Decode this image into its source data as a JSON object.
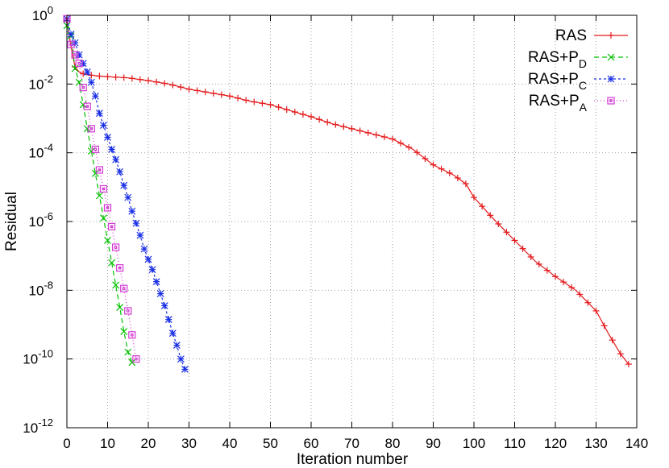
{
  "chart_data": {
    "type": "line",
    "title": "",
    "xlabel": "Iteration number",
    "ylabel": "Residual",
    "xlim": [
      0,
      140
    ],
    "ylim_log10": [
      -12,
      0
    ],
    "yscale": "log",
    "grid": true,
    "legend_position": "top-right",
    "x_ticks": [
      "0",
      "10",
      "20",
      "30",
      "40",
      "50",
      "60",
      "70",
      "80",
      "90",
      "100",
      "110",
      "120",
      "130",
      "140"
    ],
    "y_ticks": [
      {
        "base": "10",
        "exp": "0",
        "log10": 0
      },
      {
        "base": "10",
        "exp": "-2",
        "log10": -2
      },
      {
        "base": "10",
        "exp": "-4",
        "log10": -4
      },
      {
        "base": "10",
        "exp": "-6",
        "log10": -6
      },
      {
        "base": "10",
        "exp": "-8",
        "log10": -8
      },
      {
        "base": "10",
        "exp": "-10",
        "log10": -10
      },
      {
        "base": "10",
        "exp": "-12",
        "log10": -12
      }
    ],
    "series": [
      {
        "name": "RAS",
        "name_base": "RAS+P",
        "name_sub": "",
        "legend_label": "RAS",
        "color": "#e41a1c",
        "dash": "",
        "marker": "plus",
        "points_log10": [
          [
            0,
            -0.15
          ],
          [
            1,
            -0.9
          ],
          [
            2,
            -1.5
          ],
          [
            3,
            -1.65
          ],
          [
            4,
            -1.7
          ],
          [
            5,
            -1.73
          ],
          [
            8,
            -1.77
          ],
          [
            12,
            -1.8
          ],
          [
            15,
            -1.82
          ],
          [
            20,
            -1.9
          ],
          [
            25,
            -2.0
          ],
          [
            30,
            -2.15
          ],
          [
            35,
            -2.25
          ],
          [
            40,
            -2.35
          ],
          [
            45,
            -2.5
          ],
          [
            50,
            -2.6
          ],
          [
            55,
            -2.78
          ],
          [
            60,
            -2.95
          ],
          [
            65,
            -3.15
          ],
          [
            70,
            -3.3
          ],
          [
            75,
            -3.45
          ],
          [
            80,
            -3.6
          ],
          [
            85,
            -3.9
          ],
          [
            90,
            -4.35
          ],
          [
            95,
            -4.65
          ],
          [
            98,
            -4.9
          ],
          [
            100,
            -5.3
          ],
          [
            105,
            -5.95
          ],
          [
            110,
            -6.55
          ],
          [
            115,
            -7.15
          ],
          [
            120,
            -7.6
          ],
          [
            125,
            -8.0
          ],
          [
            130,
            -8.6
          ],
          [
            133,
            -9.25
          ],
          [
            136,
            -9.85
          ],
          [
            138,
            -10.15
          ]
        ]
      },
      {
        "name": "RAS+PD",
        "name_base": "RAS+P",
        "name_sub": "D",
        "legend_label": "RAS+P_D",
        "color": "#00c000",
        "dash": "6,4",
        "marker": "x",
        "points_log10": [
          [
            0,
            -0.3
          ],
          [
            1,
            -0.6
          ],
          [
            2,
            -1.55
          ],
          [
            3,
            -1.95
          ],
          [
            4,
            -2.6
          ],
          [
            5,
            -3.3
          ],
          [
            6,
            -3.95
          ],
          [
            7,
            -4.6
          ],
          [
            8,
            -5.25
          ],
          [
            9,
            -5.9
          ],
          [
            10,
            -6.55
          ],
          [
            11,
            -7.2
          ],
          [
            12,
            -7.85
          ],
          [
            13,
            -8.5
          ],
          [
            14,
            -9.2
          ],
          [
            15,
            -9.8
          ],
          [
            16,
            -10.1
          ]
        ]
      },
      {
        "name": "RAS+PC",
        "name_base": "RAS+P",
        "name_sub": "C",
        "legend_label": "RAS+P_C",
        "color": "#1a2fe6",
        "dash": "3,3",
        "marker": "star",
        "points_log10": [
          [
            0,
            -0.1
          ],
          [
            1,
            -0.55
          ],
          [
            2,
            -0.8
          ],
          [
            3,
            -1.15
          ],
          [
            4,
            -1.4
          ],
          [
            5,
            -1.65
          ],
          [
            6,
            -1.95
          ],
          [
            7,
            -2.35
          ],
          [
            8,
            -2.85
          ],
          [
            9,
            -3.2
          ],
          [
            10,
            -3.55
          ],
          [
            11,
            -3.9
          ],
          [
            12,
            -4.2
          ],
          [
            13,
            -4.55
          ],
          [
            14,
            -4.95
          ],
          [
            15,
            -5.3
          ],
          [
            16,
            -5.7
          ],
          [
            17,
            -6.05
          ],
          [
            18,
            -6.4
          ],
          [
            19,
            -6.8
          ],
          [
            20,
            -7.1
          ],
          [
            21,
            -7.4
          ],
          [
            22,
            -7.75
          ],
          [
            23,
            -8.1
          ],
          [
            24,
            -8.45
          ],
          [
            25,
            -8.85
          ],
          [
            26,
            -9.25
          ],
          [
            27,
            -9.6
          ],
          [
            28,
            -10.0
          ],
          [
            29,
            -10.3
          ]
        ]
      },
      {
        "name": "RAS+PA",
        "name_base": "RAS+P",
        "name_sub": "A",
        "legend_label": "RAS+P_A",
        "color": "#d438d4",
        "dash": "1,3",
        "marker": "square",
        "points_log10": [
          [
            0,
            -0.1
          ],
          [
            1,
            -0.85
          ],
          [
            2,
            -1.15
          ],
          [
            3,
            -1.4
          ],
          [
            4,
            -2.1
          ],
          [
            5,
            -2.65
          ],
          [
            6,
            -3.3
          ],
          [
            7,
            -3.9
          ],
          [
            8,
            -4.5
          ],
          [
            9,
            -5.05
          ],
          [
            10,
            -5.6
          ],
          [
            11,
            -6.15
          ],
          [
            12,
            -6.75
          ],
          [
            13,
            -7.35
          ],
          [
            14,
            -7.95
          ],
          [
            15,
            -8.6
          ],
          [
            16,
            -9.3
          ],
          [
            17,
            -10.0
          ]
        ]
      }
    ]
  }
}
